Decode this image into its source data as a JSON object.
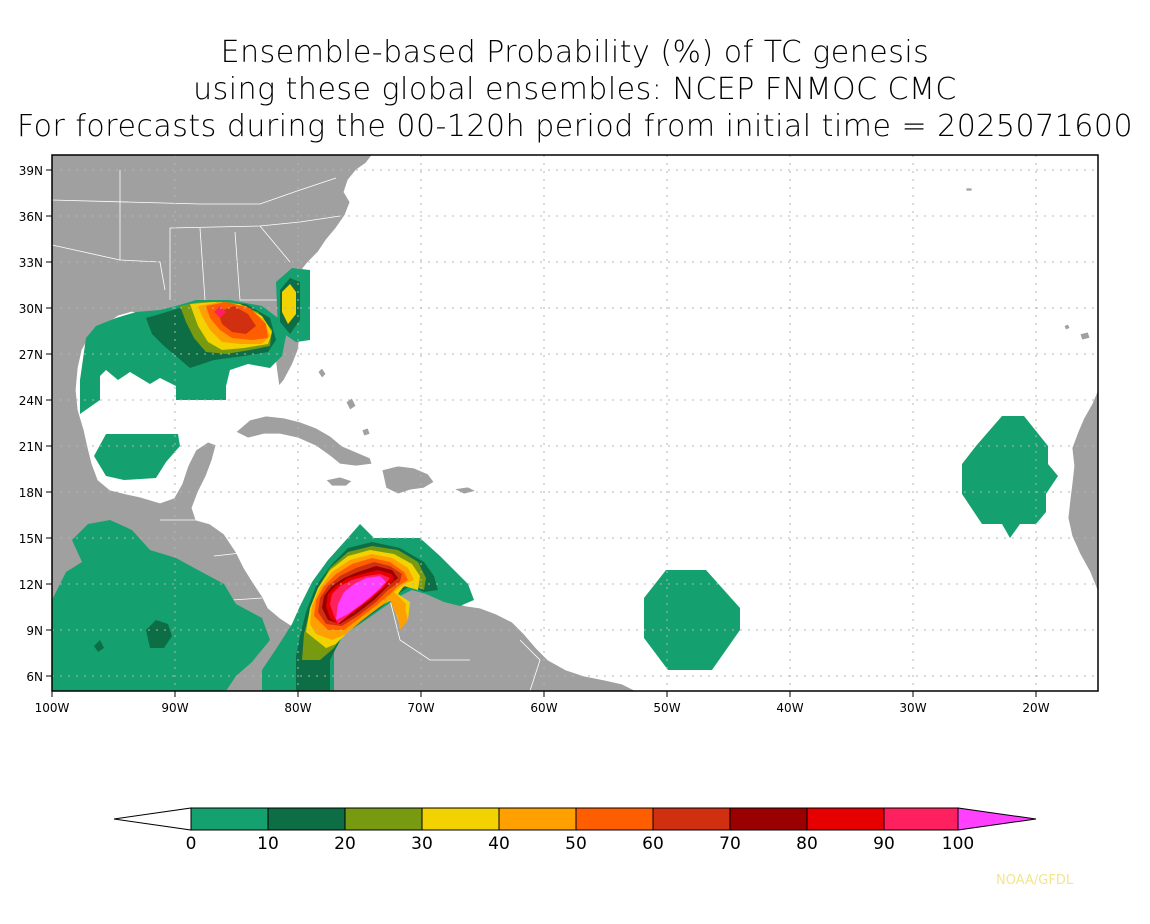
{
  "title": {
    "line1": "Ensemble-based Probability (%) of TC genesis",
    "line2": "using these global ensembles:   NCEP FNMOC CMC",
    "line3": "For forecasts during the 00-120h period from initial time = 2025071600"
  },
  "axes": {
    "lat_labels": [
      "39N",
      "36N",
      "33N",
      "30N",
      "27N",
      "24N",
      "21N",
      "18N",
      "15N",
      "12N",
      "9N",
      "6N"
    ],
    "lon_labels": [
      "100W",
      "90W",
      "80W",
      "70W",
      "60W",
      "50W",
      "40W",
      "30W",
      "20W"
    ]
  },
  "colorbar": {
    "tick_labels": [
      "0",
      "10",
      "20",
      "30",
      "40",
      "50",
      "60",
      "70",
      "80",
      "90",
      "100"
    ],
    "colors": [
      "#ffffff",
      "#15a070",
      "#0d6e45",
      "#789a10",
      "#f2d200",
      "#ffa000",
      "#ff5e00",
      "#d03010",
      "#9b0000",
      "#e60000",
      "#ff2060",
      "#ff40ff"
    ]
  },
  "colors": {
    "land": "#a0a0a0",
    "ocean": "#ffffff",
    "grid": "#b4b4b4"
  },
  "credit": "NOAA/GFDL"
}
